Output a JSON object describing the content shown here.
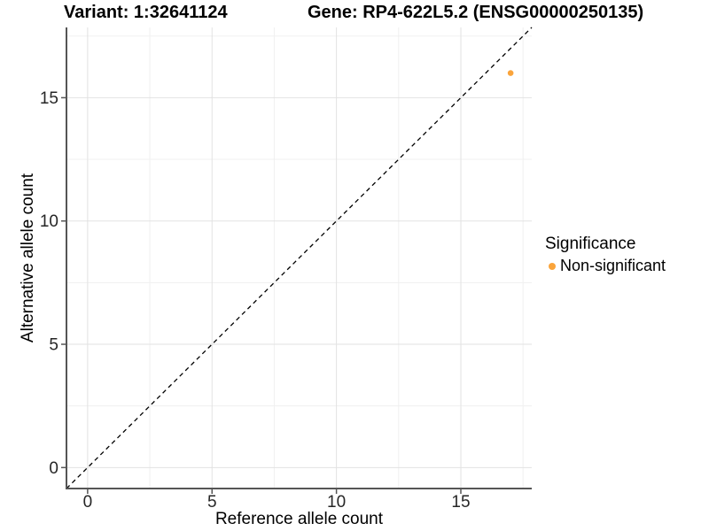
{
  "chart_data": {
    "type": "scatter",
    "titles": {
      "variant": "Variant: 1:32641124",
      "gene": "Gene: RP4-622L5.2 (ENSG00000250135)"
    },
    "xlabel": "Reference allele count",
    "ylabel": "Alternative allele count",
    "xlim": [
      -0.85,
      17.85
    ],
    "ylim": [
      -0.85,
      17.85
    ],
    "xticks": [
      0,
      5,
      10,
      15
    ],
    "yticks": [
      0,
      5,
      10,
      15
    ],
    "minor_ticks": [
      2.5,
      7.5,
      12.5,
      17.5
    ],
    "grid": true,
    "identity_line": {
      "style": "dashed",
      "color": "#000000"
    },
    "series": [
      {
        "name": "Non-significant",
        "color": "#FAA43B",
        "points": [
          {
            "x": 17,
            "y": 16
          }
        ]
      }
    ],
    "legend": {
      "position": "right",
      "title": "Significance",
      "entries": [
        {
          "label": "Non-significant",
          "color": "#FAA43B"
        }
      ]
    },
    "colors": {
      "point": "#FAA43B",
      "grid_major": "#E2E2E2",
      "grid_minor": "#F0F0F0",
      "axis_line": "#555555",
      "tick_text": "#262626",
      "title_text": "#000000"
    }
  }
}
